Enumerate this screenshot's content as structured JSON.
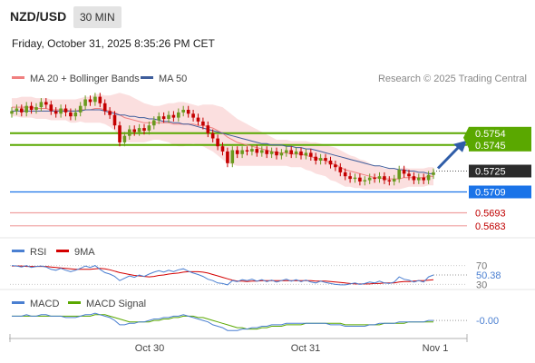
{
  "header": {
    "symbol": "NZD/USD",
    "timeframe": "30 MIN",
    "datetime": "Friday, October 31, 2025 8:35:26 PM CET"
  },
  "colors": {
    "bollinger_fill": "#fbdcdc",
    "ma20": "#f08080",
    "ma50": "#3f5e9c",
    "up_candle": "#6a9a1f",
    "down_candle": "#c40000",
    "green_level": "#5aa800",
    "blue_level": "#1a73e8",
    "red_level": "#f0a0a0",
    "current_price": "#2b2b2b",
    "rsi": "#4a7fd1",
    "rsi_9ma": "#d40000",
    "macd": "#4a7fd1",
    "macd_signal": "#5aa800",
    "arrow": "#2f5da8"
  },
  "chart_data": [
    {
      "type": "candlestick",
      "legend": [
        {
          "label": "MA 20 + Bollinger Bands",
          "color": "#f08080"
        },
        {
          "label": "MA 50",
          "color": "#3f5e9c"
        }
      ],
      "legend_position": "top-left",
      "watermark": "Research © 2025 Trading Central",
      "y_range": [
        0.5678,
        0.5788
      ],
      "x_ticks": [
        "Oct 30",
        "Oct 31",
        "Nov 1"
      ],
      "levels": [
        {
          "value": 0.5754,
          "label": "0.5754",
          "style": "green"
        },
        {
          "value": 0.5745,
          "label": "0.5745",
          "style": "green"
        },
        {
          "value": 0.5725,
          "label": "0.5725",
          "style": "current"
        },
        {
          "value": 0.5709,
          "label": "0.5709",
          "style": "blue"
        },
        {
          "value": 0.5693,
          "label": "0.5693",
          "style": "red"
        },
        {
          "value": 0.5683,
          "label": "0.5683",
          "style": "red"
        }
      ],
      "close": [
        0.5771,
        0.5773,
        0.577,
        0.5775,
        0.5772,
        0.5774,
        0.5778,
        0.5776,
        0.5771,
        0.5769,
        0.5773,
        0.577,
        0.5767,
        0.577,
        0.5775,
        0.578,
        0.5778,
        0.5782,
        0.5777,
        0.5771,
        0.5768,
        0.576,
        0.5747,
        0.5752,
        0.5757,
        0.5755,
        0.5758,
        0.5756,
        0.576,
        0.5764,
        0.5767,
        0.5765,
        0.5768,
        0.5766,
        0.577,
        0.5772,
        0.5769,
        0.5766,
        0.5763,
        0.576,
        0.5754,
        0.575,
        0.5744,
        0.574,
        0.5731,
        0.5741,
        0.5738,
        0.5741,
        0.574,
        0.5742,
        0.5739,
        0.5741,
        0.5738,
        0.574,
        0.5737,
        0.5739,
        0.5741,
        0.5738,
        0.574,
        0.5737,
        0.5739,
        0.5736,
        0.5733,
        0.5735,
        0.5733,
        0.573,
        0.5728,
        0.5724,
        0.5721,
        0.5719,
        0.572,
        0.5717,
        0.5718,
        0.572,
        0.5719,
        0.5721,
        0.5718,
        0.5717,
        0.5719,
        0.5726,
        0.5723,
        0.5721,
        0.5718,
        0.572,
        0.5718,
        0.5722,
        0.5724
      ],
      "ma20": [
        0.5774,
        0.5774,
        0.5774,
        0.5774,
        0.5774,
        0.5773,
        0.5773,
        0.5773,
        0.5772,
        0.5772,
        0.5772,
        0.5772,
        0.5771,
        0.5771,
        0.5772,
        0.5772,
        0.5772,
        0.5773,
        0.5773,
        0.5772,
        0.5771,
        0.577,
        0.5768,
        0.5766,
        0.5765,
        0.5764,
        0.5763,
        0.5762,
        0.5762,
        0.5762,
        0.5762,
        0.5762,
        0.5762,
        0.5761,
        0.5761,
        0.5761,
        0.5761,
        0.5761,
        0.576,
        0.576,
        0.5759,
        0.5758,
        0.5756,
        0.5754,
        0.5751,
        0.5749,
        0.5747,
        0.5746,
        0.5745,
        0.5744,
        0.5743,
        0.5742,
        0.5741,
        0.574,
        0.5739,
        0.5739,
        0.5739,
        0.5738,
        0.5738,
        0.5738,
        0.5737,
        0.5736,
        0.5735,
        0.5734,
        0.5733,
        0.5731,
        0.573,
        0.5728,
        0.5726,
        0.5725,
        0.5724,
        0.5723,
        0.5722,
        0.5721,
        0.572,
        0.572,
        0.5719,
        0.5719,
        0.5719,
        0.5719,
        0.572,
        0.572,
        0.572,
        0.572,
        0.572,
        0.5721,
        0.5721
      ],
      "ma50": [
        0.5771,
        0.5771,
        0.5771,
        0.5771,
        0.5771,
        0.5771,
        0.5771,
        0.5771,
        0.5771,
        0.5771,
        0.5771,
        0.5771,
        0.5771,
        0.5771,
        0.5771,
        0.5772,
        0.5772,
        0.5772,
        0.5772,
        0.5771,
        0.577,
        0.5769,
        0.5768,
        0.5768,
        0.5767,
        0.5767,
        0.5766,
        0.5766,
        0.5765,
        0.5765,
        0.5764,
        0.5763,
        0.5763,
        0.5762,
        0.5762,
        0.5761,
        0.5761,
        0.576,
        0.5759,
        0.5758,
        0.5757,
        0.5756,
        0.5755,
        0.5754,
        0.5753,
        0.5752,
        0.5751,
        0.575,
        0.5749,
        0.5748,
        0.5747,
        0.5746,
        0.5746,
        0.5745,
        0.5745,
        0.5745,
        0.5744,
        0.5744,
        0.5743,
        0.5743,
        0.5742,
        0.5742,
        0.5741,
        0.574,
        0.5739,
        0.5738,
        0.5737,
        0.5736,
        0.5735,
        0.5734,
        0.5733,
        0.5732,
        0.5731,
        0.573,
        0.5729,
        0.5729,
        0.5728,
        0.5727,
        0.5727,
        0.5726,
        0.5726,
        0.5725,
        0.5725,
        0.5724,
        0.5724,
        0.5723,
        0.5723
      ],
      "bb_width": [
        0.0007,
        0.0007,
        0.0008,
        0.0008,
        0.0008,
        0.0008,
        0.0008,
        0.0008,
        0.0008,
        0.0008,
        0.0008,
        0.0008,
        0.0009,
        0.0009,
        0.0009,
        0.001,
        0.001,
        0.0011,
        0.0011,
        0.0011,
        0.0012,
        0.0014,
        0.0017,
        0.0018,
        0.0018,
        0.0017,
        0.0016,
        0.0015,
        0.0014,
        0.0013,
        0.0013,
        0.0014,
        0.0015,
        0.0016,
        0.0017,
        0.0017,
        0.0016,
        0.0015,
        0.0015,
        0.0016,
        0.0017,
        0.0018,
        0.0019,
        0.002,
        0.002,
        0.0019,
        0.0018,
        0.0017,
        0.0016,
        0.0015,
        0.0014,
        0.0013,
        0.0012,
        0.0011,
        0.001,
        0.001,
        0.001,
        0.001,
        0.001,
        0.001,
        0.0011,
        0.0011,
        0.0012,
        0.0012,
        0.0012,
        0.0013,
        0.0013,
        0.0013,
        0.0013,
        0.0012,
        0.0012,
        0.0011,
        0.0011,
        0.001,
        0.0009,
        0.0009,
        0.0008,
        0.0008,
        0.0008,
        0.0008,
        0.0008,
        0.0007,
        0.0007,
        0.0007,
        0.0007,
        0.0007,
        0.0007
      ]
    },
    {
      "type": "line",
      "legend": [
        {
          "label": "RSI",
          "color": "#4a7fd1"
        },
        {
          "label": "9MA",
          "color": "#d40000"
        }
      ],
      "y_range": [
        25,
        75
      ],
      "ticks": [
        {
          "value": 70,
          "label": "70"
        },
        {
          "value": 30,
          "label": "30"
        }
      ],
      "last_value_label": "50.38",
      "rsi": [
        70,
        69,
        67,
        70,
        66,
        68,
        69,
        67,
        62,
        60,
        64,
        60,
        57,
        60,
        64,
        69,
        66,
        70,
        62,
        55,
        52,
        47,
        38,
        43,
        48,
        45,
        50,
        47,
        52,
        56,
        59,
        56,
        60,
        57,
        61,
        63,
        58,
        54,
        51,
        47,
        41,
        38,
        33,
        32,
        29,
        38,
        36,
        40,
        38,
        41,
        37,
        40,
        36,
        39,
        35,
        38,
        41,
        37,
        40,
        36,
        39,
        35,
        33,
        37,
        34,
        32,
        30,
        29,
        29,
        31,
        33,
        30,
        32,
        35,
        33,
        37,
        33,
        32,
        35,
        46,
        41,
        39,
        35,
        38,
        35,
        46,
        50
      ],
      "ma9": [
        69,
        69,
        69,
        68,
        68,
        68,
        68,
        68,
        67,
        66,
        65,
        64,
        63,
        62,
        62,
        62,
        62,
        63,
        64,
        63,
        61,
        58,
        55,
        53,
        51,
        49,
        48,
        47,
        46,
        47,
        49,
        50,
        52,
        53,
        54,
        56,
        57,
        57,
        57,
        56,
        54,
        51,
        48,
        45,
        42,
        39,
        37,
        37,
        36,
        37,
        37,
        38,
        38,
        38,
        38,
        38,
        38,
        38,
        38,
        38,
        38,
        38,
        37,
        37,
        37,
        36,
        35,
        34,
        33,
        32,
        31,
        31,
        31,
        31,
        32,
        32,
        33,
        33,
        33,
        35,
        36,
        36,
        37,
        38,
        38,
        39,
        40
      ]
    },
    {
      "type": "line",
      "legend": [
        {
          "label": "MACD",
          "color": "#4a7fd1"
        },
        {
          "label": "MACD Signal",
          "color": "#5aa800"
        }
      ],
      "y_range": [
        -0.0012,
        0.0005
      ],
      "last_value_label": "-0.00",
      "macd": [
        0.0001,
        0.0001,
        0.0001,
        0.0002,
        0.0001,
        0.0001,
        0.0002,
        0.0002,
        0.0001,
        0.0001,
        0.0001,
        0.0,
        0.0,
        0.0,
        0.0001,
        0.0002,
        0.0002,
        0.0003,
        0.0002,
        0.0001,
        0.0,
        -0.0002,
        -0.0005,
        -0.0005,
        -0.0004,
        -0.0004,
        -0.0003,
        -0.0003,
        -0.0002,
        -0.0001,
        -0.0001,
        0.0,
        0.0,
        0.0001,
        0.0001,
        0.0002,
        0.0001,
        0.0,
        -0.0001,
        -0.0002,
        -0.0003,
        -0.0005,
        -0.0006,
        -0.0007,
        -0.0009,
        -0.0009,
        -0.0009,
        -0.0008,
        -0.0008,
        -0.0007,
        -0.0007,
        -0.0006,
        -0.0006,
        -0.0005,
        -0.0005,
        -0.0005,
        -0.0004,
        -0.0004,
        -0.0004,
        -0.0004,
        -0.0004,
        -0.0004,
        -0.0004,
        -0.0004,
        -0.0004,
        -0.0005,
        -0.0005,
        -0.0005,
        -0.0006,
        -0.0006,
        -0.0006,
        -0.0006,
        -0.0006,
        -0.0005,
        -0.0005,
        -0.0004,
        -0.0004,
        -0.0004,
        -0.0004,
        -0.0003,
        -0.0003,
        -0.0003,
        -0.0003,
        -0.0003,
        -0.0003,
        -0.0002,
        -0.0002
      ],
      "signal": [
        0.0001,
        0.0001,
        0.0001,
        0.0001,
        0.0001,
        0.0001,
        0.0001,
        0.0001,
        0.0001,
        0.0001,
        0.0001,
        0.0001,
        0.0001,
        0.0001,
        0.0001,
        0.0001,
        0.0001,
        0.0002,
        0.0002,
        0.0002,
        0.0001,
        0.0,
        -0.0001,
        -0.0002,
        -0.0003,
        -0.0003,
        -0.0003,
        -0.0003,
        -0.0003,
        -0.0002,
        -0.0002,
        -0.0001,
        -0.0001,
        0.0,
        0.0,
        0.0001,
        0.0001,
        0.0001,
        0.0,
        0.0,
        -0.0001,
        -0.0002,
        -0.0003,
        -0.0004,
        -0.0005,
        -0.0006,
        -0.0007,
        -0.0007,
        -0.0008,
        -0.0008,
        -0.0008,
        -0.0007,
        -0.0007,
        -0.0006,
        -0.0006,
        -0.0006,
        -0.0005,
        -0.0005,
        -0.0005,
        -0.0005,
        -0.0004,
        -0.0004,
        -0.0004,
        -0.0004,
        -0.0004,
        -0.0004,
        -0.0004,
        -0.0004,
        -0.0005,
        -0.0005,
        -0.0005,
        -0.0005,
        -0.0005,
        -0.0005,
        -0.0005,
        -0.0005,
        -0.0004,
        -0.0004,
        -0.0004,
        -0.0004,
        -0.0004,
        -0.0003,
        -0.0003,
        -0.0003,
        -0.0003,
        -0.0003,
        -0.0003
      ]
    }
  ]
}
